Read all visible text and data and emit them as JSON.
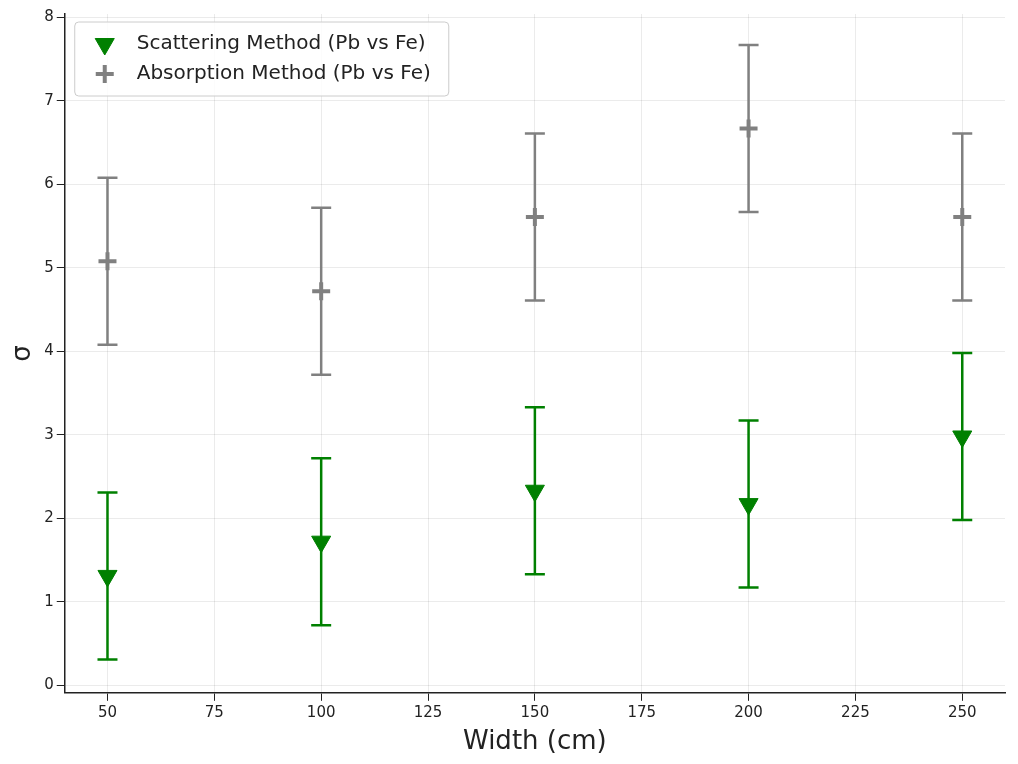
{
  "chart_data": {
    "type": "scatter",
    "xlabel": "Width (cm)",
    "ylabel": "σ",
    "x": [
      50,
      100,
      150,
      200,
      250
    ],
    "series": [
      {
        "name": "Scattering Method (Pb vs Fe)",
        "color": "#008000",
        "marker": "triangle",
        "values": [
          1.31,
          1.72,
          2.33,
          2.17,
          2.98
        ],
        "errors": [
          1.0,
          1.0,
          1.0,
          1.0,
          1.0
        ]
      },
      {
        "name": "Absorption Method (Pb vs Fe)",
        "color": "#808080",
        "marker": "cross",
        "values": [
          5.08,
          4.72,
          5.61,
          6.67,
          5.61
        ],
        "errors": [
          1.0,
          1.0,
          1.0,
          1.0,
          1.0
        ]
      }
    ],
    "xlim": [
      40,
      260
    ],
    "xticks": [
      50,
      75,
      100,
      125,
      150,
      175,
      200,
      225,
      250
    ],
    "ylim": [
      -0.09,
      8.04
    ],
    "yticks": [
      0,
      1,
      2,
      3,
      4,
      5,
      6,
      7,
      8
    ],
    "grid": true,
    "legend": "top left"
  }
}
